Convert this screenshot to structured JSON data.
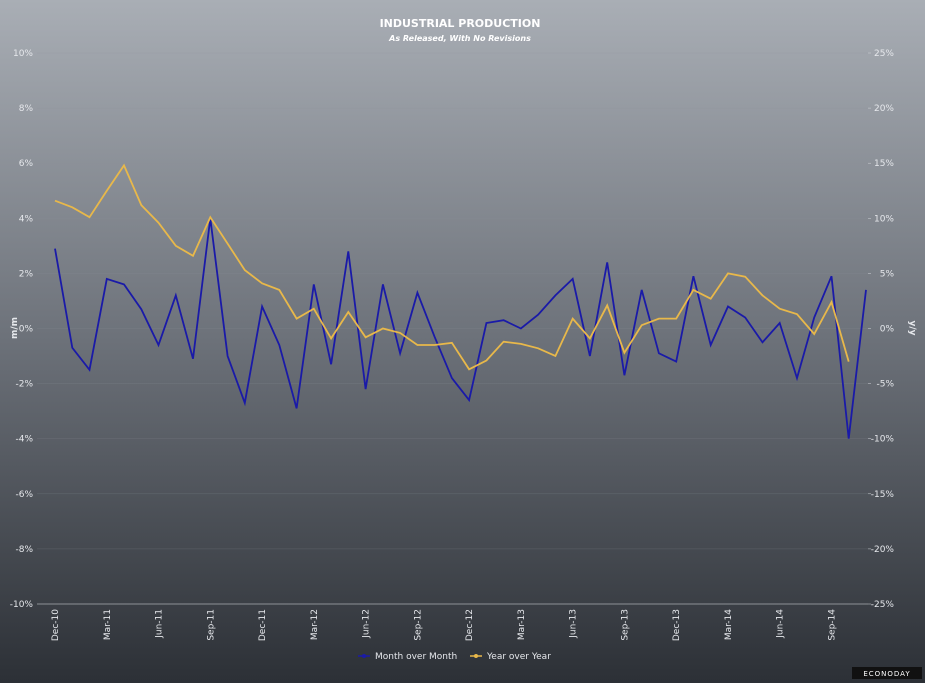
{
  "chart_data": {
    "type": "line",
    "title": "INDUSTRIAL PRODUCTION",
    "subtitle": "As Released, With No Revisions",
    "y_label": "m/m",
    "y2_label": "y/y",
    "watermark": "ECONODAY",
    "categories": [
      "Dec-10",
      null,
      null,
      "Mar-11",
      null,
      null,
      "Jun-11",
      null,
      null,
      "Sep-11",
      null,
      null,
      "Dec-11",
      null,
      null,
      "Mar-12",
      null,
      null,
      "Jun-12",
      null,
      null,
      "Sep-12",
      null,
      null,
      "Dec-12",
      null,
      null,
      "Mar-13",
      null,
      null,
      "Jun-13",
      null,
      null,
      "Sep-13",
      null,
      null,
      "Dec-13",
      null,
      null,
      "Mar-14",
      null,
      null,
      "Jun-14",
      null,
      null,
      "Sep-14",
      null,
      null
    ],
    "series": [
      {
        "name": "Month over Month",
        "color": "#1a1aa8",
        "axis": "y",
        "values": [
          2.9,
          -0.7,
          -1.5,
          1.8,
          1.6,
          0.7,
          -0.6,
          1.2,
          -1.1,
          4.0,
          -1.0,
          -2.7,
          0.8,
          -0.6,
          -2.9,
          1.6,
          -1.3,
          2.8,
          -2.2,
          1.6,
          -0.9,
          1.3,
          -0.3,
          -1.8,
          -2.6,
          0.2,
          0.3,
          0.0,
          0.5,
          1.2,
          1.8,
          -1.0,
          2.4,
          -1.7,
          1.4,
          -0.9,
          -1.2,
          1.9,
          -0.6,
          0.8,
          0.4,
          -0.5,
          0.2,
          -1.8,
          0.4,
          1.9,
          -4.0,
          1.4
        ]
      },
      {
        "name": "Year over Year",
        "color": "#e8b84a",
        "axis": "y2",
        "values": [
          11.6,
          11.0,
          10.1,
          12.5,
          14.8,
          11.2,
          9.6,
          7.5,
          6.6,
          10.1,
          7.7,
          5.3,
          4.1,
          3.5,
          0.9,
          1.8,
          -0.9,
          1.5,
          -0.8,
          0.0,
          -0.4,
          -1.5,
          -1.5,
          -1.3,
          -3.7,
          -2.9,
          -1.2,
          -1.4,
          -1.8,
          -2.5,
          0.9,
          -0.9,
          2.1,
          -2.2,
          0.3,
          0.9,
          0.9,
          3.5,
          2.7,
          5.0,
          4.7,
          3.0,
          1.8,
          1.3,
          -0.5,
          2.4,
          -3.0,
          null
        ]
      }
    ],
    "ylim": [
      -10,
      10
    ],
    "yticks": [
      {
        "value": -10,
        "label": "-10%"
      },
      {
        "value": -8,
        "label": "-8%"
      },
      {
        "value": -6,
        "label": "-6%"
      },
      {
        "value": -4,
        "label": "-4%"
      },
      {
        "value": -2,
        "label": "-2%"
      },
      {
        "value": 0,
        "label": "0%"
      },
      {
        "value": 2,
        "label": "2%"
      },
      {
        "value": 4,
        "label": "4%"
      },
      {
        "value": 6,
        "label": "6%"
      },
      {
        "value": 8,
        "label": "8%"
      },
      {
        "value": 10,
        "label": "10%"
      }
    ],
    "y2lim": [
      -25,
      25
    ],
    "y2ticks": [
      {
        "value": -25,
        "label": "-25%"
      },
      {
        "value": -20,
        "label": "-20%"
      },
      {
        "value": -15,
        "label": "-15%"
      },
      {
        "value": -10,
        "label": "-10%"
      },
      {
        "value": -5,
        "label": "-5%"
      },
      {
        "value": 0,
        "label": "0%"
      },
      {
        "value": 5,
        "label": "5%"
      },
      {
        "value": 10,
        "label": "10%"
      },
      {
        "value": 15,
        "label": "15%"
      },
      {
        "value": 20,
        "label": "20%"
      },
      {
        "value": 25,
        "label": "25%"
      }
    ],
    "grid": true,
    "legend": "bottom"
  }
}
